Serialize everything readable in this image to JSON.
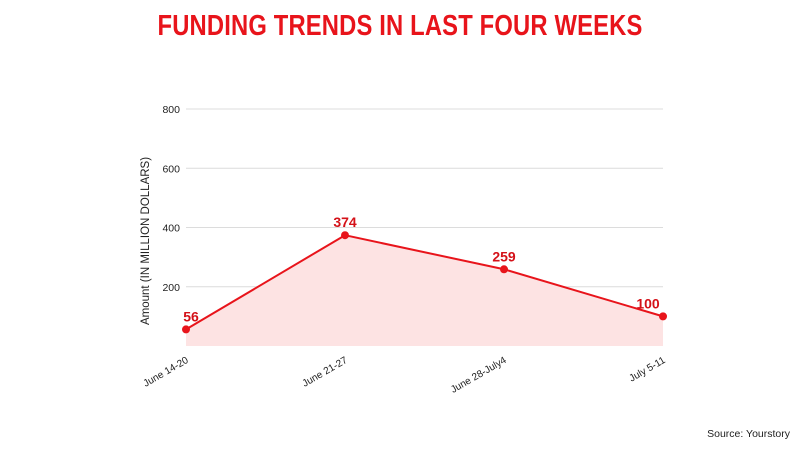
{
  "chart_data": {
    "type": "area",
    "title": "FUNDING TRENDS IN LAST FOUR WEEKS",
    "ylabel": "Amount (IN MILLION DOLLARS)",
    "xlabel": "",
    "categories": [
      "June 14-20",
      "June 21-27",
      "June 28-July4",
      "July 5-11"
    ],
    "series": [
      {
        "values": [
          56,
          374,
          259,
          100
        ]
      }
    ],
    "ylim": [
      0,
      800
    ],
    "yticks": [
      200,
      400,
      600,
      800
    ],
    "data_labels": [
      "56",
      "374",
      "259",
      "100"
    ],
    "grid": true,
    "legend": "none",
    "colors": {
      "title": "#e8141b",
      "line": "#e8141b",
      "fill": "#fde3e3",
      "label": "#d41118",
      "grid": "#dcdcdc",
      "axis_text": "#222222"
    }
  },
  "source": "Source: Yourstory"
}
